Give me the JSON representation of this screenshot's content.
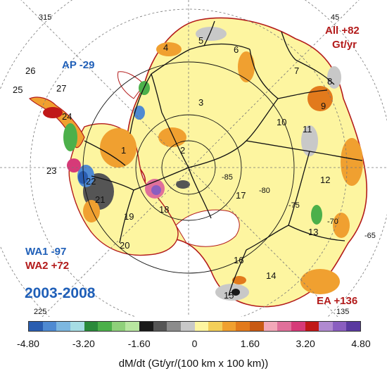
{
  "map": {
    "longitude_labels": [
      "315",
      "45",
      "225",
      "135"
    ],
    "latitude_labels": [
      "-85",
      "-80",
      "-75",
      "-70",
      "-65"
    ],
    "basin_numbers": [
      "1",
      "2",
      "3",
      "4",
      "5",
      "6",
      "7",
      "8",
      "9",
      "10",
      "11",
      "12",
      "13",
      "14",
      "15",
      "16",
      "17",
      "18",
      "19",
      "20",
      "21",
      "22",
      "23",
      "24",
      "25",
      "26",
      "27"
    ],
    "region_labels": {
      "ap": "AP -29",
      "all_line1": "All +82",
      "all_line2": "Gt/yr",
      "wa1": "WA1 -97",
      "wa2": "WA2 +72",
      "ea": "EA +136"
    },
    "period": "2003-2008"
  },
  "colorbar": {
    "colors": [
      "#2a5db0",
      "#4f8ad2",
      "#7db7e0",
      "#a6dde4",
      "#2a8a3a",
      "#4cb04a",
      "#8fd07a",
      "#b8e6a0",
      "#1a1a1a",
      "#555555",
      "#8c8c8c",
      "#c8c8c8",
      "#fdf5a0",
      "#f3cf5a",
      "#f0a030",
      "#e27a1c",
      "#c85a14",
      "#f2a8b8",
      "#e0709a",
      "#d63a78",
      "#c01818",
      "#b08ad0",
      "#8a5ec0",
      "#5a3aa0"
    ],
    "tick_labels": [
      "-4.80",
      "-3.20",
      "-1.60",
      "0",
      "1.60",
      "3.20",
      "4.80"
    ],
    "tick_values": [
      -4.8,
      -3.2,
      -1.6,
      0,
      1.6,
      3.2,
      4.8
    ],
    "range": [
      -4.8,
      4.8
    ],
    "label": "dM/dt (Gt/yr/(100 km x 100 km))"
  }
}
